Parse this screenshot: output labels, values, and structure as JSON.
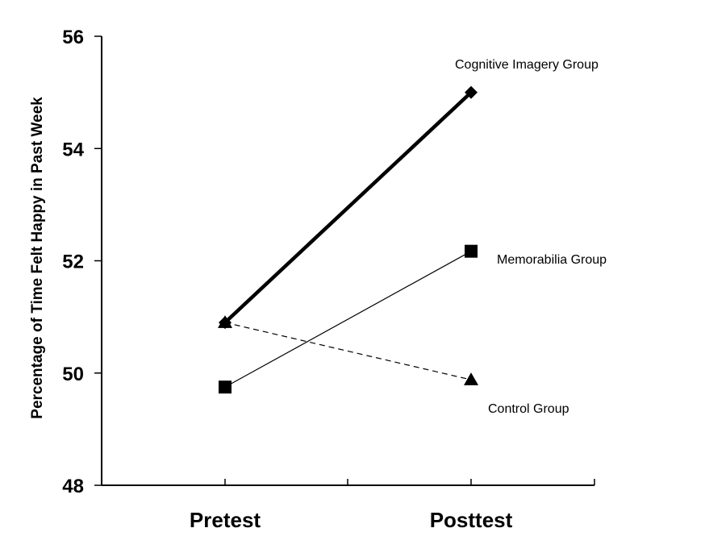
{
  "chart_data": {
    "type": "line",
    "title": "",
    "xlabel": "",
    "ylabel": "Percentage of Time Felt Happy in Past Week",
    "categories": [
      "Pretest",
      "Posttest"
    ],
    "ylim": [
      48,
      56
    ],
    "yticks": [
      48,
      50,
      52,
      54,
      56
    ],
    "grid": false,
    "series": [
      {
        "name": "Cognitive Imagery Group",
        "values": [
          50.9,
          55.0
        ],
        "marker": "diamond",
        "line": "thick-solid",
        "color": "#000000"
      },
      {
        "name": "Memorabilia Group",
        "values": [
          49.75,
          52.17
        ],
        "marker": "square",
        "line": "thin-solid",
        "color": "#000000"
      },
      {
        "name": "Control Group",
        "values": [
          50.9,
          49.88
        ],
        "marker": "triangle",
        "line": "dashed",
        "color": "#000000"
      }
    ]
  }
}
